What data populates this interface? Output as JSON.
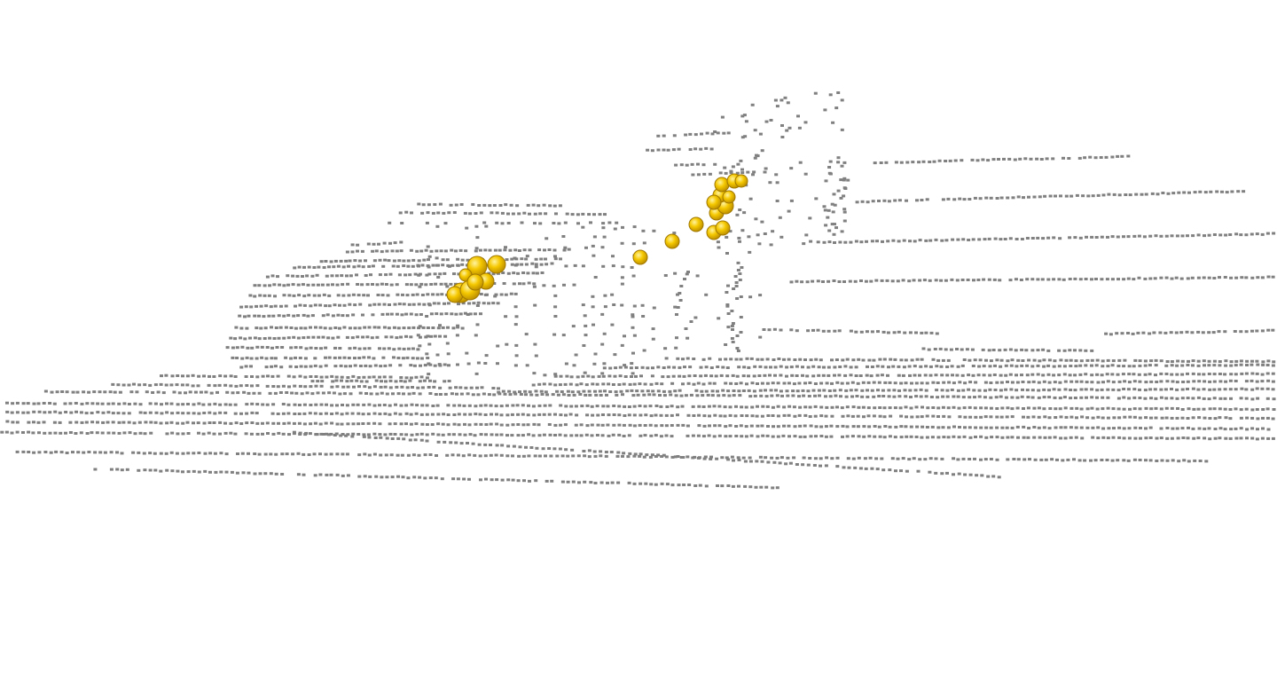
{
  "scene": {
    "background_color": "#ffffff",
    "point_color": "#808080",
    "highlight_color": "#f2c500",
    "highlight_edge_color": "#a07800",
    "icon": "point-cloud-3d-view"
  }
}
